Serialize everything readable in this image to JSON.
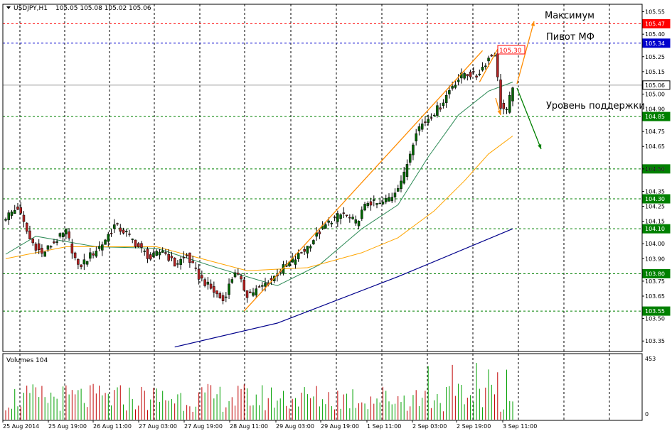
{
  "header": {
    "symbol": "USDJPY,H1",
    "ohlc": "105.05 105.08 105.02 105.06"
  },
  "volume_panel": {
    "label": "Volumes 104",
    "scale_max_label": "453",
    "scale_min_label": "0"
  },
  "annotations": {
    "maximum": "Максимум",
    "pivot": "Пивот МФ",
    "support": "Уровень поддержки",
    "peak_price": "105.30"
  },
  "colors": {
    "background": "#ffffff",
    "grid": "#000000",
    "bull_candle": "#006400",
    "bear_candle": "#b22222",
    "volume_up": "#00a000",
    "volume_down": "#c00000",
    "ma_fast": "#2e8b57",
    "ma_mid": "#ffa500",
    "ma_slow": "#00008b",
    "red_level": "#ff0000",
    "blue_level": "#0000cd",
    "green_level": "#008000",
    "arrow_orange": "#ff8c00",
    "arrow_green": "#008000"
  },
  "chart_data": {
    "type": "candlestick",
    "symbol": "USDJPY",
    "timeframe": "H1",
    "ylim": [
      103.28,
      105.6
    ],
    "y_ticks": [
      "105.55",
      "105.40",
      "105.25",
      "105.15",
      "105.00",
      "104.90",
      "104.75",
      "104.65",
      "104.50",
      "104.35",
      "104.25",
      "104.15",
      "104.00",
      "103.90",
      "103.75",
      "103.65",
      "103.50",
      "103.35"
    ],
    "x_labels": [
      "25 Aug 2014",
      "25 Aug 19:00",
      "26 Aug 11:00",
      "27 Aug 03:00",
      "27 Aug 19:00",
      "28 Aug 11:00",
      "29 Aug 03:00",
      "29 Aug 19:00",
      "1 Sep 11:00",
      "2 Sep 03:00",
      "2 Sep 19:00",
      "3 Sep 11:00"
    ],
    "horizontal_levels": [
      {
        "value": 105.47,
        "label": "105.47",
        "color": "red"
      },
      {
        "value": 105.34,
        "label": "105.34",
        "color": "blue"
      },
      {
        "value": 105.06,
        "label": "105.06",
        "color": "gray",
        "current_price": true
      },
      {
        "value": 104.85,
        "label": "104.85",
        "color": "green"
      },
      {
        "value": 104.5,
        "label": "104.50",
        "color": "green"
      },
      {
        "value": 104.3,
        "label": "104.30",
        "color": "green"
      },
      {
        "value": 104.1,
        "label": "104.10",
        "color": "green"
      },
      {
        "value": 103.8,
        "label": "103.80",
        "color": "green"
      },
      {
        "value": 103.55,
        "label": "103.55",
        "color": "green"
      }
    ],
    "close_path": [
      {
        "bar": 0,
        "price": 104.18
      },
      {
        "bar": 4,
        "price": 104.24
      },
      {
        "bar": 8,
        "price": 104.03
      },
      {
        "bar": 12,
        "price": 103.93
      },
      {
        "bar": 16,
        "price": 104.01
      },
      {
        "bar": 20,
        "price": 104.08
      },
      {
        "bar": 24,
        "price": 103.84
      },
      {
        "bar": 28,
        "price": 103.92
      },
      {
        "bar": 32,
        "price": 104.0
      },
      {
        "bar": 36,
        "price": 104.12
      },
      {
        "bar": 40,
        "price": 104.07
      },
      {
        "bar": 44,
        "price": 103.98
      },
      {
        "bar": 48,
        "price": 103.9
      },
      {
        "bar": 52,
        "price": 103.96
      },
      {
        "bar": 56,
        "price": 103.86
      },
      {
        "bar": 60,
        "price": 103.92
      },
      {
        "bar": 64,
        "price": 103.78
      },
      {
        "bar": 68,
        "price": 103.7
      },
      {
        "bar": 72,
        "price": 103.62
      },
      {
        "bar": 76,
        "price": 103.82
      },
      {
        "bar": 80,
        "price": 103.66
      },
      {
        "bar": 84,
        "price": 103.7
      },
      {
        "bar": 88,
        "price": 103.76
      },
      {
        "bar": 92,
        "price": 103.84
      },
      {
        "bar": 96,
        "price": 103.9
      },
      {
        "bar": 100,
        "price": 103.98
      },
      {
        "bar": 104,
        "price": 104.08
      },
      {
        "bar": 108,
        "price": 104.16
      },
      {
        "bar": 112,
        "price": 104.2
      },
      {
        "bar": 116,
        "price": 104.14
      },
      {
        "bar": 120,
        "price": 104.28
      },
      {
        "bar": 124,
        "price": 104.26
      },
      {
        "bar": 128,
        "price": 104.32
      },
      {
        "bar": 132,
        "price": 104.46
      },
      {
        "bar": 136,
        "price": 104.76
      },
      {
        "bar": 140,
        "price": 104.84
      },
      {
        "bar": 144,
        "price": 104.92
      },
      {
        "bar": 148,
        "price": 105.06
      },
      {
        "bar": 152,
        "price": 105.14
      },
      {
        "bar": 156,
        "price": 105.12
      },
      {
        "bar": 160,
        "price": 105.24
      },
      {
        "bar": 162,
        "price": 105.28
      },
      {
        "bar": 163,
        "price": 105.1
      },
      {
        "bar": 164,
        "price": 104.92
      },
      {
        "bar": 166,
        "price": 104.88
      },
      {
        "bar": 168,
        "price": 105.06
      }
    ],
    "moving_averages": [
      {
        "color": "green",
        "points": [
          {
            "bar": 0,
            "price": 103.93
          },
          {
            "bar": 10,
            "price": 104.05
          },
          {
            "bar": 30,
            "price": 103.98
          },
          {
            "bar": 50,
            "price": 103.97
          },
          {
            "bar": 70,
            "price": 103.84
          },
          {
            "bar": 90,
            "price": 103.72
          },
          {
            "bar": 104,
            "price": 103.86
          },
          {
            "bar": 118,
            "price": 104.1
          },
          {
            "bar": 130,
            "price": 104.26
          },
          {
            "bar": 140,
            "price": 104.58
          },
          {
            "bar": 150,
            "price": 104.86
          },
          {
            "bar": 160,
            "price": 105.02
          },
          {
            "bar": 168,
            "price": 105.08
          }
        ]
      },
      {
        "color": "orange",
        "points": [
          {
            "bar": 0,
            "price": 103.9
          },
          {
            "bar": 20,
            "price": 103.98
          },
          {
            "bar": 50,
            "price": 103.98
          },
          {
            "bar": 80,
            "price": 103.82
          },
          {
            "bar": 100,
            "price": 103.84
          },
          {
            "bar": 118,
            "price": 103.94
          },
          {
            "bar": 130,
            "price": 104.04
          },
          {
            "bar": 142,
            "price": 104.22
          },
          {
            "bar": 152,
            "price": 104.42
          },
          {
            "bar": 160,
            "price": 104.6
          },
          {
            "bar": 168,
            "price": 104.72
          }
        ]
      },
      {
        "color": "navy",
        "points": [
          {
            "bar": 56,
            "price": 103.31
          },
          {
            "bar": 90,
            "price": 103.47
          },
          {
            "bar": 130,
            "price": 103.78
          },
          {
            "bar": 168,
            "price": 104.1
          }
        ]
      }
    ],
    "trend_lines": [
      {
        "color": "orange",
        "from": {
          "bar": 79,
          "price": 103.55
        },
        "to": {
          "bar": 158,
          "price": 105.29
        }
      },
      {
        "color": "orange",
        "from": {
          "bar": 157,
          "price": 105.08
        },
        "to": {
          "bar": 163,
          "price": 105.3
        }
      }
    ],
    "volumes_max": 453,
    "volume_bars_approx": 170
  }
}
